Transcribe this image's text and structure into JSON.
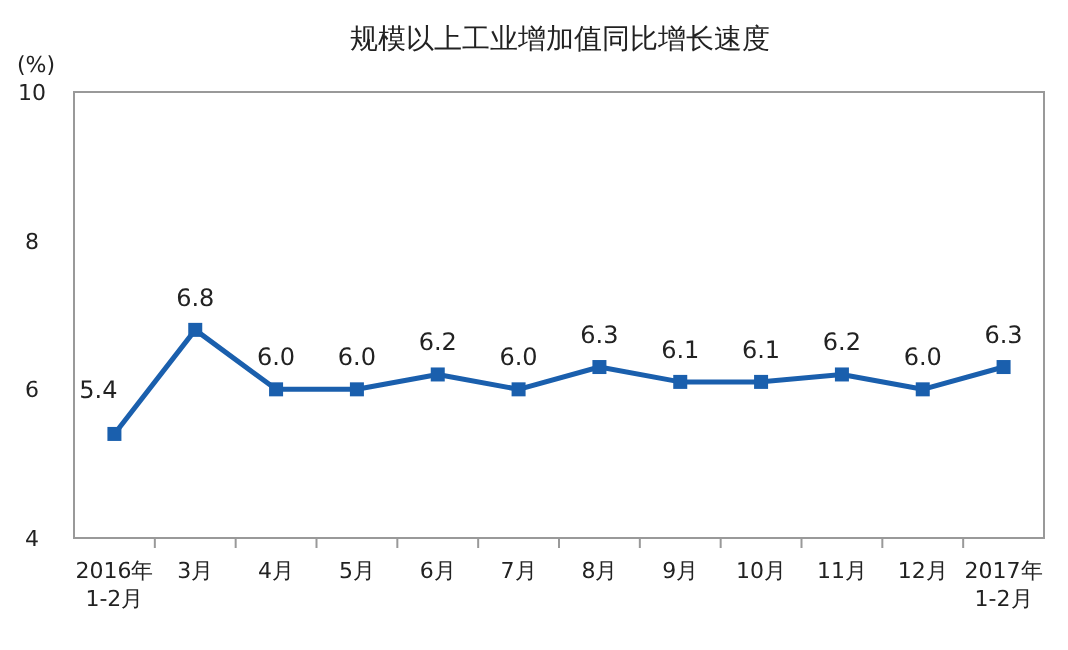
{
  "chart_data": {
    "type": "line",
    "title": "规模以上工业增加值同比增长速度",
    "ylabel": "(%)",
    "categories": [
      "2016年\n1-2月",
      "3月",
      "4月",
      "5月",
      "6月",
      "7月",
      "8月",
      "9月",
      "10月",
      "11月",
      "12月",
      "2017年\n1-2月"
    ],
    "values": [
      5.4,
      6.8,
      6.0,
      6.0,
      6.2,
      6.0,
      6.3,
      6.1,
      6.1,
      6.2,
      6.0,
      6.3
    ],
    "value_labels": [
      "5.4",
      "6.8",
      "6.0",
      "6.0",
      "6.2",
      "6.0",
      "6.3",
      "6.1",
      "6.1",
      "6.2",
      "6.0",
      "6.3"
    ],
    "color": "#1a5fad",
    "ylim": [
      4,
      10
    ],
    "yticks": [
      4,
      6,
      8,
      10
    ],
    "grid": false,
    "marker": "square",
    "line_style": "solid"
  }
}
